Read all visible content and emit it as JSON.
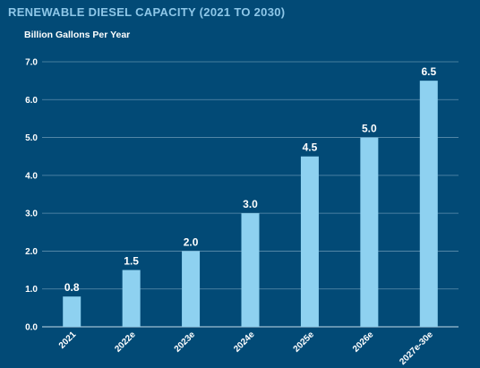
{
  "chart_data": {
    "type": "bar",
    "title": "RENEWABLE DIESEL CAPACITY (2021 TO 2030)",
    "ylabel": "Billion Gallons Per Year",
    "xlabel": "",
    "categories": [
      "2021",
      "2022e",
      "2023e",
      "2024e",
      "2025e",
      "2026e",
      "2027e-30e"
    ],
    "values": [
      0.8,
      1.5,
      2.0,
      3.0,
      4.5,
      5.0,
      6.5
    ],
    "data_labels": [
      "0.8",
      "1.5",
      "2.0",
      "3.0",
      "4.5",
      "5.0",
      "6.5"
    ],
    "ylim": [
      0,
      7
    ],
    "yticks": [
      "0.0",
      "1.0",
      "2.0",
      "3.0",
      "4.0",
      "5.0",
      "6.0",
      "7.0"
    ],
    "grid": true,
    "colors": {
      "bar": "#8ed1f0",
      "background": "#024a76",
      "title": "#8ec7e8",
      "grid": "#5f8fae"
    }
  }
}
